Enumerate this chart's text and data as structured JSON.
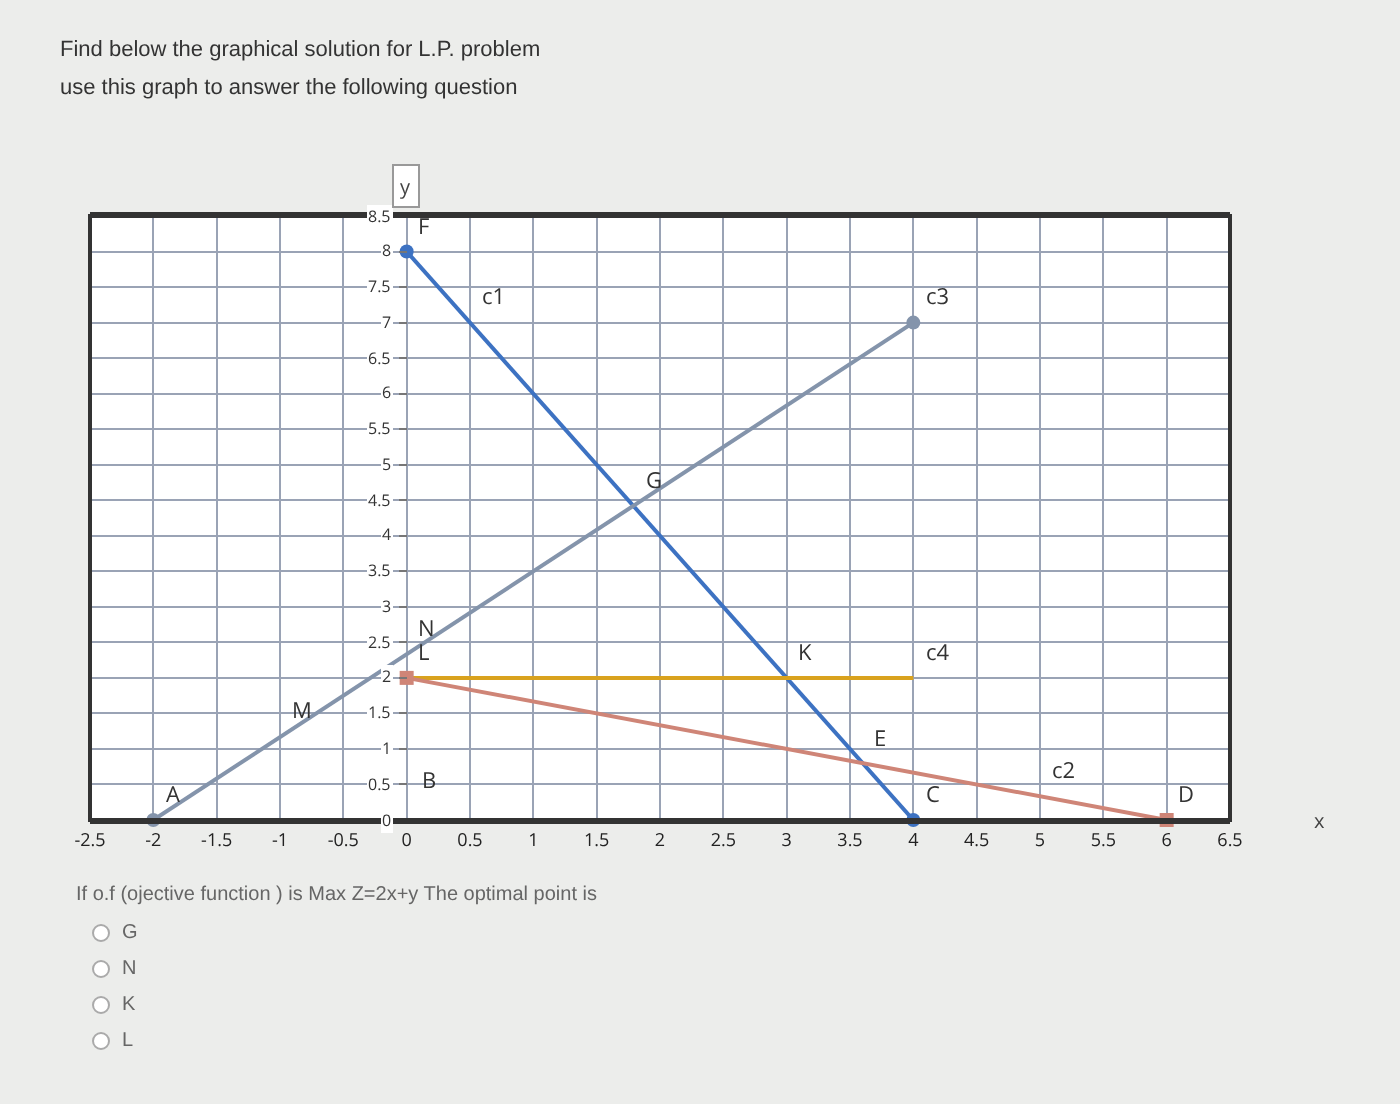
{
  "chart_data": {
    "type": "line",
    "title": "Find below the graphical solution for L.P. problem",
    "subtitle": "use this graph to answer the following question",
    "xlabel": "x",
    "ylabel": "y",
    "series": [
      {
        "color": "#3d72c2",
        "x": [
          0,
          4
        ],
        "values": [
          8,
          0
        ],
        "marker": "circle"
      },
      {
        "color": "#8494ab",
        "x": [
          -2,
          4
        ],
        "values": [
          0,
          7
        ],
        "marker": "circle"
      },
      {
        "color": "#d9a21e",
        "x": [
          0,
          4
        ],
        "values": [
          2,
          2
        ],
        "marker": "none"
      },
      {
        "color": "#cf8577",
        "x": [
          0,
          6
        ],
        "values": [
          2,
          0
        ],
        "marker": "square"
      }
    ],
    "xlim": [
      -2.5,
      6.5
    ],
    "xticks": [
      -2.5,
      -2,
      -1.5,
      -1,
      -0.5,
      0,
      0.5,
      1,
      1.5,
      2,
      2.5,
      3,
      3.5,
      4,
      4.5,
      5,
      5.5,
      6,
      6.5
    ],
    "ylim": [
      0,
      8.5
    ],
    "yticks": [
      0,
      0.5,
      1,
      1.5,
      2,
      2.5,
      3,
      3.5,
      4,
      4.5,
      5,
      5.5,
      6,
      6.5,
      7,
      7.5,
      8,
      8.5
    ],
    "grid": true,
    "annotations": [
      {
        "text": "F",
        "x": 0,
        "y": 8
      },
      {
        "text": "c1",
        "x": 0.5,
        "y": 7
      },
      {
        "text": "c3",
        "x": 4,
        "y": 7
      },
      {
        "text": "G",
        "x": 1.79,
        "y": 4.42
      },
      {
        "text": "N",
        "x": 0,
        "y": 2.33
      },
      {
        "text": "K",
        "x": 3,
        "y": 2
      },
      {
        "text": "c4",
        "x": 4,
        "y": 2
      },
      {
        "text": "L",
        "x": 0,
        "y": 2
      },
      {
        "text": "M",
        "x": -1,
        "y": 1.17
      },
      {
        "text": "E",
        "x": 3.6,
        "y": 0.8
      },
      {
        "text": "c2",
        "x": 5,
        "y": 0.33
      },
      {
        "text": "A",
        "x": -2,
        "y": 0
      },
      "B",
      {
        "text": "D",
        "x": 6,
        "y": 0
      },
      {
        "text": "C",
        "x": 4,
        "y": 0
      },
      "If o.f (ojective function ) is Max  Z=2x+y  The optimal point is",
      "G",
      "N",
      "K",
      "L"
    ]
  }
}
